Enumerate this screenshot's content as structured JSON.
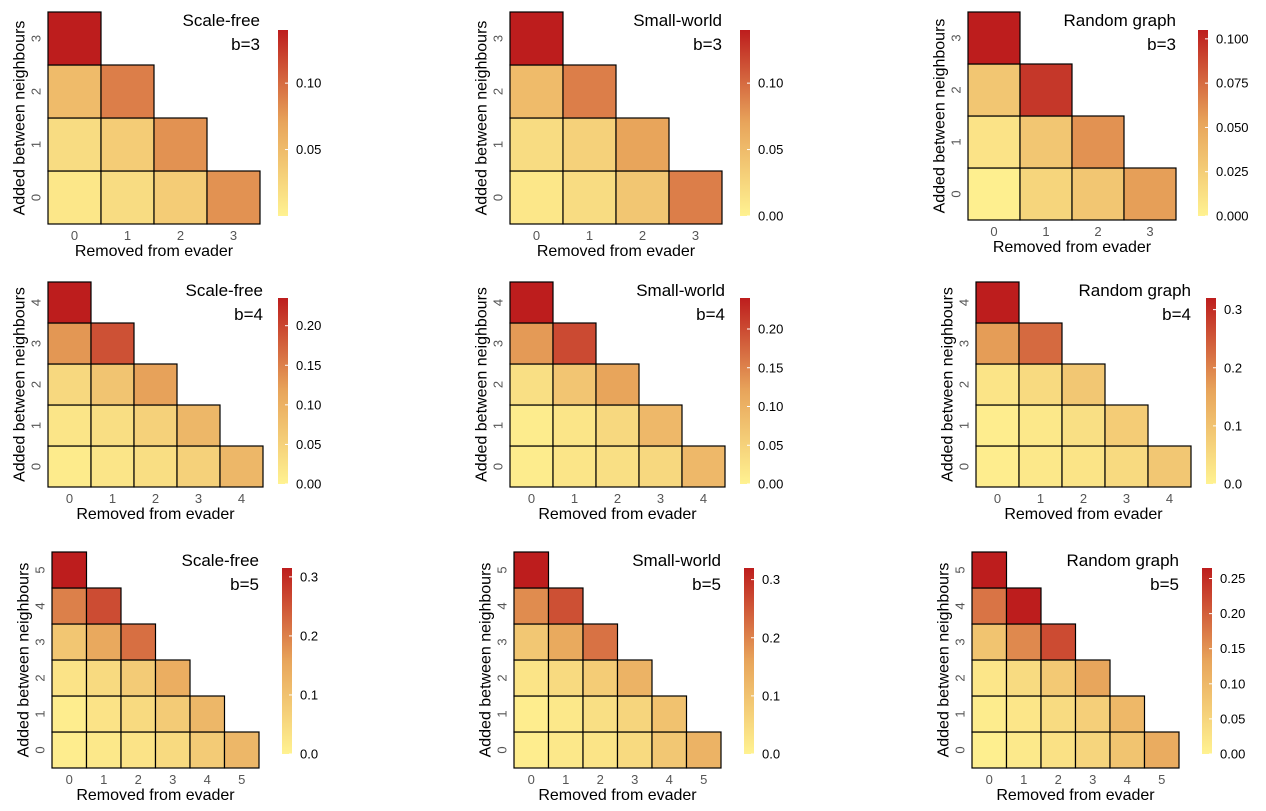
{
  "figure": {
    "colors": {
      "low": "#fff291",
      "mid": "#e8a55b",
      "high": "#bd1d1d",
      "cell_border": "#000000",
      "tick_text": "#555555"
    }
  },
  "chart_data": [
    {
      "type": "heatmap",
      "title": "Scale-free",
      "subtitle": "b=3",
      "xlabel": "Removed from evader",
      "ylabel": "Added between neighbours",
      "x_ticks": [
        "0",
        "1",
        "2",
        "3"
      ],
      "y_ticks": [
        "0",
        "1",
        "2",
        "3"
      ],
      "vmin": 0.0,
      "vmax": 0.14,
      "colorbar_ticks": [
        "0.05",
        "0.10"
      ],
      "cells": [
        {
          "x": 0,
          "y": 0,
          "v": 0.01
        },
        {
          "x": 1,
          "y": 0,
          "v": 0.02
        },
        {
          "x": 2,
          "y": 0,
          "v": 0.035
        },
        {
          "x": 3,
          "y": 0,
          "v": 0.08
        },
        {
          "x": 0,
          "y": 1,
          "v": 0.02
        },
        {
          "x": 1,
          "y": 1,
          "v": 0.035
        },
        {
          "x": 2,
          "y": 1,
          "v": 0.08
        },
        {
          "x": 0,
          "y": 2,
          "v": 0.05
        },
        {
          "x": 1,
          "y": 2,
          "v": 0.09
        },
        {
          "x": 0,
          "y": 3,
          "v": 0.14
        }
      ]
    },
    {
      "type": "heatmap",
      "title": "Small-world",
      "subtitle": "b=3",
      "xlabel": "Removed from evader",
      "ylabel": "Added between neighbours",
      "x_ticks": [
        "0",
        "1",
        "2",
        "3"
      ],
      "y_ticks": [
        "0",
        "1",
        "2",
        "3"
      ],
      "vmin": 0.0,
      "vmax": 0.14,
      "colorbar_ticks": [
        "0.00",
        "0.05",
        "0.10"
      ],
      "cells": [
        {
          "x": 0,
          "y": 0,
          "v": 0.01
        },
        {
          "x": 1,
          "y": 0,
          "v": 0.02
        },
        {
          "x": 2,
          "y": 0,
          "v": 0.04
        },
        {
          "x": 3,
          "y": 0,
          "v": 0.09
        },
        {
          "x": 0,
          "y": 1,
          "v": 0.02
        },
        {
          "x": 1,
          "y": 1,
          "v": 0.03
        },
        {
          "x": 2,
          "y": 1,
          "v": 0.07
        },
        {
          "x": 0,
          "y": 2,
          "v": 0.05
        },
        {
          "x": 1,
          "y": 2,
          "v": 0.09
        },
        {
          "x": 0,
          "y": 3,
          "v": 0.14
        }
      ]
    },
    {
      "type": "heatmap",
      "title": "Random graph",
      "subtitle": "b=3",
      "xlabel": "Removed from evader",
      "ylabel": "Added between neighbours",
      "x_ticks": [
        "0",
        "1",
        "2",
        "3"
      ],
      "y_ticks": [
        "0",
        "1",
        "2",
        "3"
      ],
      "vmin": 0.0,
      "vmax": 0.105,
      "colorbar_ticks": [
        "0.000",
        "0.025",
        "0.050",
        "0.075",
        "0.100"
      ],
      "cells": [
        {
          "x": 0,
          "y": 0,
          "v": 0.002
        },
        {
          "x": 1,
          "y": 0,
          "v": 0.02
        },
        {
          "x": 2,
          "y": 0,
          "v": 0.03
        },
        {
          "x": 3,
          "y": 0,
          "v": 0.055
        },
        {
          "x": 0,
          "y": 1,
          "v": 0.01
        },
        {
          "x": 1,
          "y": 1,
          "v": 0.03
        },
        {
          "x": 2,
          "y": 1,
          "v": 0.06
        },
        {
          "x": 0,
          "y": 2,
          "v": 0.03
        },
        {
          "x": 1,
          "y": 2,
          "v": 0.095
        },
        {
          "x": 0,
          "y": 3,
          "v": 0.105
        }
      ]
    },
    {
      "type": "heatmap",
      "title": "Scale-free",
      "subtitle": "b=4",
      "xlabel": "Removed from evader",
      "ylabel": "Added between neighbours",
      "x_ticks": [
        "0",
        "1",
        "2",
        "3",
        "4"
      ],
      "y_ticks": [
        "0",
        "1",
        "2",
        "3",
        "4"
      ],
      "vmin": 0.0,
      "vmax": 0.235,
      "colorbar_ticks": [
        "0.00",
        "0.05",
        "0.10",
        "0.15",
        "0.20"
      ],
      "cells": [
        {
          "x": 0,
          "y": 0,
          "v": 0.01
        },
        {
          "x": 1,
          "y": 0,
          "v": 0.02
        },
        {
          "x": 2,
          "y": 0,
          "v": 0.03
        },
        {
          "x": 3,
          "y": 0,
          "v": 0.05
        },
        {
          "x": 4,
          "y": 0,
          "v": 0.09
        },
        {
          "x": 0,
          "y": 1,
          "v": 0.02
        },
        {
          "x": 1,
          "y": 1,
          "v": 0.03
        },
        {
          "x": 2,
          "y": 1,
          "v": 0.05
        },
        {
          "x": 3,
          "y": 1,
          "v": 0.09
        },
        {
          "x": 0,
          "y": 2,
          "v": 0.04
        },
        {
          "x": 1,
          "y": 2,
          "v": 0.07
        },
        {
          "x": 2,
          "y": 2,
          "v": 0.12
        },
        {
          "x": 0,
          "y": 3,
          "v": 0.13
        },
        {
          "x": 1,
          "y": 3,
          "v": 0.19
        },
        {
          "x": 0,
          "y": 4,
          "v": 0.235
        }
      ]
    },
    {
      "type": "heatmap",
      "title": "Small-world",
      "subtitle": "b=4",
      "xlabel": "Removed from evader",
      "ylabel": "Added between neighbours",
      "x_ticks": [
        "0",
        "1",
        "2",
        "3",
        "4"
      ],
      "y_ticks": [
        "0",
        "1",
        "2",
        "3",
        "4"
      ],
      "vmin": 0.0,
      "vmax": 0.24,
      "colorbar_ticks": [
        "0.00",
        "0.05",
        "0.10",
        "0.15",
        "0.20"
      ],
      "cells": [
        {
          "x": 0,
          "y": 0,
          "v": 0.01
        },
        {
          "x": 1,
          "y": 0,
          "v": 0.02
        },
        {
          "x": 2,
          "y": 0,
          "v": 0.03
        },
        {
          "x": 3,
          "y": 0,
          "v": 0.04
        },
        {
          "x": 4,
          "y": 0,
          "v": 0.09
        },
        {
          "x": 0,
          "y": 1,
          "v": 0.01
        },
        {
          "x": 1,
          "y": 1,
          "v": 0.02
        },
        {
          "x": 2,
          "y": 1,
          "v": 0.04
        },
        {
          "x": 3,
          "y": 1,
          "v": 0.09
        },
        {
          "x": 0,
          "y": 2,
          "v": 0.03
        },
        {
          "x": 1,
          "y": 2,
          "v": 0.07
        },
        {
          "x": 2,
          "y": 2,
          "v": 0.12
        },
        {
          "x": 0,
          "y": 3,
          "v": 0.13
        },
        {
          "x": 1,
          "y": 3,
          "v": 0.2
        },
        {
          "x": 0,
          "y": 4,
          "v": 0.24
        }
      ]
    },
    {
      "type": "heatmap",
      "title": "Random graph",
      "subtitle": "b=4",
      "xlabel": "Removed from evader",
      "ylabel": "Added between neighbours",
      "x_ticks": [
        "0",
        "1",
        "2",
        "3",
        "4"
      ],
      "y_ticks": [
        "0",
        "1",
        "2",
        "3",
        "4"
      ],
      "vmin": 0.0,
      "vmax": 0.32,
      "colorbar_ticks": [
        "0.0",
        "0.1",
        "0.2",
        "0.3"
      ],
      "cells": [
        {
          "x": 0,
          "y": 0,
          "v": 0.01
        },
        {
          "x": 1,
          "y": 0,
          "v": 0.02
        },
        {
          "x": 2,
          "y": 0,
          "v": 0.03
        },
        {
          "x": 3,
          "y": 0,
          "v": 0.05
        },
        {
          "x": 4,
          "y": 0,
          "v": 0.09
        },
        {
          "x": 0,
          "y": 1,
          "v": 0.01
        },
        {
          "x": 1,
          "y": 1,
          "v": 0.02
        },
        {
          "x": 2,
          "y": 1,
          "v": 0.04
        },
        {
          "x": 3,
          "y": 1,
          "v": 0.08
        },
        {
          "x": 0,
          "y": 2,
          "v": 0.03
        },
        {
          "x": 1,
          "y": 2,
          "v": 0.05
        },
        {
          "x": 2,
          "y": 2,
          "v": 0.09
        },
        {
          "x": 0,
          "y": 3,
          "v": 0.17
        },
        {
          "x": 1,
          "y": 3,
          "v": 0.23
        },
        {
          "x": 0,
          "y": 4,
          "v": 0.32
        }
      ]
    },
    {
      "type": "heatmap",
      "title": "Scale-free",
      "subtitle": "b=5",
      "xlabel": "Removed from evader",
      "ylabel": "Added between neighbours",
      "x_ticks": [
        "0",
        "1",
        "2",
        "3",
        "4",
        "5"
      ],
      "y_ticks": [
        "0",
        "1",
        "2",
        "3",
        "4",
        "5"
      ],
      "vmin": 0.0,
      "vmax": 0.315,
      "colorbar_ticks": [
        "0.0",
        "0.1",
        "0.2",
        "0.3"
      ],
      "cells": [
        {
          "x": 0,
          "y": 0,
          "v": 0.01
        },
        {
          "x": 1,
          "y": 0,
          "v": 0.02
        },
        {
          "x": 2,
          "y": 0,
          "v": 0.03
        },
        {
          "x": 3,
          "y": 0,
          "v": 0.05
        },
        {
          "x": 4,
          "y": 0,
          "v": 0.08
        },
        {
          "x": 5,
          "y": 0,
          "v": 0.12
        },
        {
          "x": 0,
          "y": 1,
          "v": 0.01
        },
        {
          "x": 1,
          "y": 1,
          "v": 0.03
        },
        {
          "x": 2,
          "y": 1,
          "v": 0.05
        },
        {
          "x": 3,
          "y": 1,
          "v": 0.08
        },
        {
          "x": 4,
          "y": 1,
          "v": 0.12
        },
        {
          "x": 0,
          "y": 2,
          "v": 0.03
        },
        {
          "x": 1,
          "y": 2,
          "v": 0.05
        },
        {
          "x": 2,
          "y": 2,
          "v": 0.08
        },
        {
          "x": 3,
          "y": 2,
          "v": 0.14
        },
        {
          "x": 0,
          "y": 3,
          "v": 0.09
        },
        {
          "x": 1,
          "y": 3,
          "v": 0.15
        },
        {
          "x": 2,
          "y": 3,
          "v": 0.22
        },
        {
          "x": 0,
          "y": 4,
          "v": 0.2
        },
        {
          "x": 1,
          "y": 4,
          "v": 0.26
        },
        {
          "x": 0,
          "y": 5,
          "v": 0.315
        }
      ]
    },
    {
      "type": "heatmap",
      "title": "Small-world",
      "subtitle": "b=5",
      "xlabel": "Removed from evader",
      "ylabel": "Added between neighbours",
      "x_ticks": [
        "0",
        "1",
        "2",
        "3",
        "4",
        "5"
      ],
      "y_ticks": [
        "0",
        "1",
        "2",
        "3",
        "4",
        "5"
      ],
      "vmin": 0.0,
      "vmax": 0.32,
      "colorbar_ticks": [
        "0.0",
        "0.1",
        "0.2",
        "0.3"
      ],
      "cells": [
        {
          "x": 0,
          "y": 0,
          "v": 0.01
        },
        {
          "x": 1,
          "y": 0,
          "v": 0.02
        },
        {
          "x": 2,
          "y": 0,
          "v": 0.03
        },
        {
          "x": 3,
          "y": 0,
          "v": 0.05
        },
        {
          "x": 4,
          "y": 0,
          "v": 0.09
        },
        {
          "x": 5,
          "y": 0,
          "v": 0.13
        },
        {
          "x": 0,
          "y": 1,
          "v": 0.01
        },
        {
          "x": 1,
          "y": 1,
          "v": 0.02
        },
        {
          "x": 2,
          "y": 1,
          "v": 0.04
        },
        {
          "x": 3,
          "y": 1,
          "v": 0.06
        },
        {
          "x": 4,
          "y": 1,
          "v": 0.1
        },
        {
          "x": 0,
          "y": 2,
          "v": 0.03
        },
        {
          "x": 1,
          "y": 2,
          "v": 0.05
        },
        {
          "x": 2,
          "y": 2,
          "v": 0.08
        },
        {
          "x": 3,
          "y": 2,
          "v": 0.13
        },
        {
          "x": 0,
          "y": 3,
          "v": 0.09
        },
        {
          "x": 1,
          "y": 3,
          "v": 0.15
        },
        {
          "x": 2,
          "y": 3,
          "v": 0.22
        },
        {
          "x": 0,
          "y": 4,
          "v": 0.19
        },
        {
          "x": 1,
          "y": 4,
          "v": 0.26
        },
        {
          "x": 0,
          "y": 5,
          "v": 0.32
        }
      ]
    },
    {
      "type": "heatmap",
      "title": "Random graph",
      "subtitle": "b=5",
      "xlabel": "Removed from evader",
      "ylabel": "Added between neighbours",
      "x_ticks": [
        "0",
        "1",
        "2",
        "3",
        "4",
        "5"
      ],
      "y_ticks": [
        "0",
        "1",
        "2",
        "3",
        "4",
        "5"
      ],
      "vmin": 0.0,
      "vmax": 0.265,
      "colorbar_ticks": [
        "0.00",
        "0.05",
        "0.10",
        "0.15",
        "0.20",
        "0.25"
      ],
      "cells": [
        {
          "x": 0,
          "y": 0,
          "v": 0.005
        },
        {
          "x": 1,
          "y": 0,
          "v": 0.015
        },
        {
          "x": 2,
          "y": 0,
          "v": 0.03
        },
        {
          "x": 3,
          "y": 0,
          "v": 0.05
        },
        {
          "x": 4,
          "y": 0,
          "v": 0.08
        },
        {
          "x": 5,
          "y": 0,
          "v": 0.12
        },
        {
          "x": 0,
          "y": 1,
          "v": 0.01
        },
        {
          "x": 1,
          "y": 1,
          "v": 0.02
        },
        {
          "x": 2,
          "y": 1,
          "v": 0.04
        },
        {
          "x": 3,
          "y": 1,
          "v": 0.06
        },
        {
          "x": 4,
          "y": 1,
          "v": 0.1
        },
        {
          "x": 0,
          "y": 2,
          "v": 0.02
        },
        {
          "x": 1,
          "y": 2,
          "v": 0.04
        },
        {
          "x": 2,
          "y": 2,
          "v": 0.07
        },
        {
          "x": 3,
          "y": 2,
          "v": 0.13
        },
        {
          "x": 0,
          "y": 3,
          "v": 0.08
        },
        {
          "x": 1,
          "y": 3,
          "v": 0.16
        },
        {
          "x": 2,
          "y": 3,
          "v": 0.22
        },
        {
          "x": 0,
          "y": 4,
          "v": 0.18
        },
        {
          "x": 1,
          "y": 4,
          "v": 0.265
        },
        {
          "x": 0,
          "y": 5,
          "v": 0.265
        }
      ]
    }
  ]
}
